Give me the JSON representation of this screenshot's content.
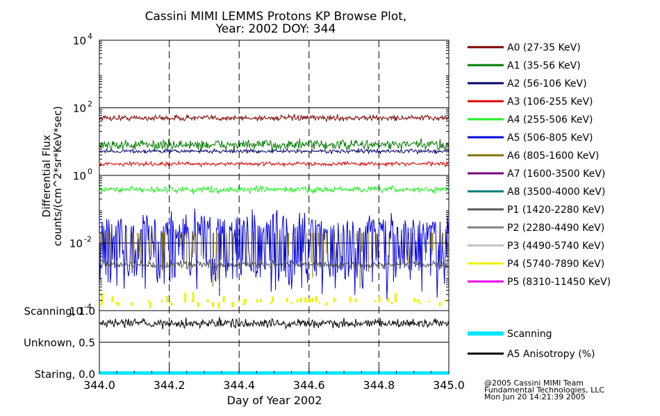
{
  "chart_data": {
    "type": "line",
    "title": "Cassini MIMI LEMMS Protons KP Browse Plot,",
    "subtitle": "Year: 2002 DOY: 344",
    "xlabel": "Day of Year 2002",
    "x_ticks": [
      "344.0",
      "344.2",
      "344.4",
      "344.6",
      "344.8",
      "345.0"
    ],
    "xlim": [
      344.0,
      345.0
    ],
    "upper_panel": {
      "ylabel": "Differential Flux",
      "ylabel2": "counts/(cm^2*sr*KeV*sec)",
      "yscale": "log",
      "ylim": [
        0.0001,
        10000
      ],
      "y_ticks": [
        {
          "base": "10",
          "exp": "4"
        },
        {
          "base": "10",
          "exp": "2"
        },
        {
          "base": "10",
          "exp": "0"
        },
        {
          "base": "10",
          "exp": "-2"
        },
        {
          "base": "10",
          "exp": "-4"
        }
      ],
      "series": [
        {
          "name": "A0 (27-35 KeV)",
          "color": "#7a0000",
          "level": 50,
          "noise": 0.07,
          "width": 1
        },
        {
          "name": "A1 (35-56 KeV)",
          "color": "#007a00",
          "level": 8,
          "noise": 0.13,
          "width": 1
        },
        {
          "name": "A2 (56-106 KeV)",
          "color": "#00006e",
          "level": 5.2,
          "noise": 0.05,
          "width": 1
        },
        {
          "name": "A3 (106-255 KeV)",
          "color": "#e00000",
          "level": 2.2,
          "noise": 0.05,
          "width": 1
        },
        {
          "name": "A4 (255-506 KeV)",
          "color": "#22ee22",
          "level": 0.38,
          "noise": 0.08,
          "width": 1
        },
        {
          "name": "A5 (506-805 KeV)",
          "color": "#0000dd",
          "level": 0.03,
          "noise": 0.6,
          "width": 1
        },
        {
          "name": "A6 (805-1600 KeV)",
          "color": "#807000",
          "level": 0.004,
          "noise": 0.6,
          "width": 1
        },
        {
          "name": "A7 (1600-3500 KeV)",
          "color": "#7a007a",
          "level": null,
          "noise": 0,
          "width": 1
        },
        {
          "name": "A8 (3500-4000 KeV)",
          "color": "#007a7a",
          "level": null,
          "noise": 0,
          "width": 1
        },
        {
          "name": "P1 (1420-2280 KeV)",
          "color": "#555555",
          "level": 0.0023,
          "noise": 0.1,
          "width": 1
        },
        {
          "name": "P2 (2280-4490 KeV)",
          "color": "#808080",
          "level": null,
          "noise": 0,
          "width": 1
        },
        {
          "name": "P3 (4490-5740 KeV)",
          "color": "#c0c0c0",
          "level": null,
          "noise": 0,
          "width": 1
        },
        {
          "name": "P4 (5740-7890 KeV)",
          "color": "#f0f000",
          "level": 0.0002,
          "noise": 0.2,
          "width": 1
        },
        {
          "name": "P5 (8310-11450 KeV)",
          "color": "#ee00ee",
          "level": null,
          "noise": 0,
          "width": 1
        }
      ]
    },
    "lower_panel": {
      "y_labels": [
        "Scanning, 1.0",
        "Unknown, 0.5",
        "Staring, 0.0"
      ],
      "ylim": [
        0.0,
        1.0
      ],
      "series": [
        {
          "name": "Scanning",
          "color": "#00e5ff",
          "level": 0.0,
          "noise": 0,
          "width": 5
        },
        {
          "name": "A5 Anisotropy (%)",
          "color": "#000000",
          "level": 0.8,
          "noise": 0.06,
          "width": 1
        }
      ]
    },
    "grid": "vertical dashed lines at x ticks, horizontal lines at y decades",
    "legend_placement": "right"
  },
  "footer": {
    "line1": "@2005 Cassini MIMI Team",
    "line2": "Fundamental Technologies, LLC",
    "line3": "Mon Jun 20 14:21:39 2005"
  }
}
